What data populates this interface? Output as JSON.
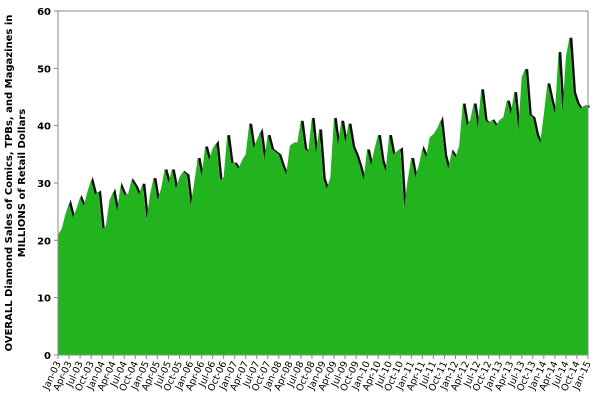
{
  "chart_data": {
    "type": "area",
    "y_label": [
      "OVERALL Diamond Sales of Comics, TPBs, and Magazines in",
      "MILLIONS of Retail Dollars"
    ],
    "color": "#22b41e",
    "edge_color": "#111111",
    "ylim": [
      0,
      60
    ],
    "yticks": [
      0,
      10,
      20,
      30,
      40,
      50,
      60
    ],
    "grid": false,
    "categories": [
      "Jan-03",
      null,
      null,
      "Apr-03",
      null,
      null,
      "Jul-03",
      null,
      null,
      "Oct-03",
      null,
      null,
      "Jan-04",
      null,
      null,
      "Apr-04",
      null,
      null,
      "Jul-04",
      null,
      null,
      "Oct-04",
      null,
      null,
      "Jan-05",
      null,
      null,
      "Apr-05",
      null,
      null,
      "Jul-05",
      null,
      null,
      "Oct-05",
      null,
      null,
      "Jan-06",
      null,
      null,
      "Apr-06",
      null,
      null,
      "Jul-06",
      null,
      null,
      "Oct-06",
      null,
      null,
      "Jan-07",
      null,
      null,
      "Apr-07",
      null,
      null,
      "Jul-07",
      null,
      null,
      "Oct-07",
      null,
      null,
      "Jan-08",
      null,
      null,
      "Apr-08",
      null,
      null,
      "Jul-08",
      null,
      null,
      "Oct-08",
      null,
      null,
      "Jan-09",
      null,
      null,
      "Apr-09",
      null,
      null,
      "Jul-09",
      null,
      null,
      "Oct-09",
      null,
      null,
      "Jan-10",
      null,
      null,
      "Apr-10",
      null,
      null,
      "Jul-10",
      null,
      null,
      "Oct-10",
      null,
      null,
      "Jan-11",
      null,
      null,
      "Apr-11",
      null,
      null,
      "Jul-11",
      null,
      null,
      "Oct-11",
      null,
      null,
      "Jan-12",
      null,
      null,
      "Apr-12",
      null,
      null,
      "Jul-12",
      null,
      null,
      "Oct-12",
      null,
      null,
      "Jan-13",
      null,
      null,
      "Apr-13",
      null,
      null,
      "Jul-13",
      null,
      null,
      "Oct-13",
      null,
      null,
      "Jan-14",
      null,
      null,
      "Apr-14",
      null,
      null,
      "Jul-14",
      null,
      null,
      "Oct-14",
      null,
      null,
      "Jan-15"
    ],
    "values": [
      21,
      22,
      24.5,
      26.5,
      24,
      25.5,
      27.5,
      26,
      28.5,
      30.5,
      28,
      28.5,
      22,
      22.5,
      27,
      28.5,
      25,
      29.5,
      28,
      28,
      30.5,
      29.5,
      28,
      30,
      23.5,
      28,
      31,
      27,
      29,
      32.5,
      30,
      32.5,
      29,
      31,
      32,
      31.5,
      26,
      30,
      34.5,
      31,
      36.5,
      34,
      36,
      37,
      30.5,
      31,
      38.5,
      33.5,
      33.5,
      32.5,
      34,
      35,
      40.5,
      36,
      37.5,
      39,
      34,
      38.5,
      36,
      35.5,
      35,
      33,
      31.5,
      36.5,
      37,
      37,
      41,
      36,
      35.5,
      41.5,
      35,
      39.5,
      31,
      29,
      31,
      41.5,
      36.5,
      41,
      37,
      40.5,
      36.5,
      35,
      33,
      30.5,
      36,
      33,
      36,
      38.5,
      34,
      32,
      38.5,
      35,
      35.5,
      36,
      25.5,
      30.5,
      34.5,
      31,
      33,
      36,
      34.5,
      38,
      38.5,
      39.5,
      41,
      35,
      32.5,
      35.5,
      34.5,
      36.5,
      44,
      40,
      41,
      44,
      39.5,
      46.5,
      41,
      40.5,
      41,
      40,
      41,
      41.5,
      44.5,
      42,
      46,
      39,
      48.5,
      50,
      42,
      41.5,
      38.5,
      37,
      42,
      47.5,
      44.5,
      42,
      53,
      42,
      52,
      55.5,
      46,
      44,
      43,
      43.5,
      43.5
    ]
  }
}
